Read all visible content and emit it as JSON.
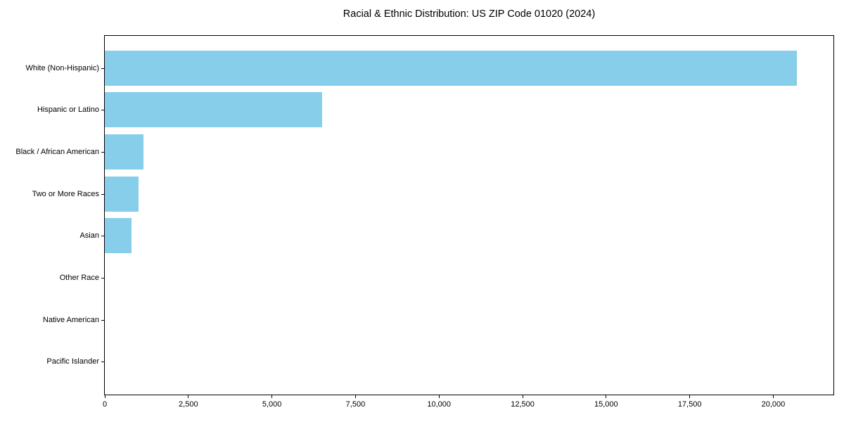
{
  "chart_data": {
    "type": "bar",
    "orientation": "horizontal",
    "title": "Racial & Ethnic Distribution: US ZIP Code 01020 (2024)",
    "categories": [
      "White (Non-Hispanic)",
      "Hispanic or Latino",
      "Black / African American",
      "Two or More Races",
      "Asian",
      "Other Race",
      "Native American",
      "Pacific Islander"
    ],
    "values": [
      20710,
      6500,
      1150,
      1000,
      790,
      0,
      0,
      0
    ],
    "xlabel": "",
    "ylabel": "",
    "xlim": [
      0,
      21800
    ],
    "x_ticks": [
      0,
      2500,
      5000,
      7500,
      10000,
      12500,
      15000,
      17500,
      20000
    ],
    "x_tick_labels": [
      "0",
      "2,500",
      "5,000",
      "7,500",
      "10,000",
      "12,500",
      "15,000",
      "17,500",
      "20,000"
    ],
    "bar_color": "#87CEEB",
    "spine_color": "#000000",
    "background_color": "#ffffff",
    "grid": false,
    "legend": null
  }
}
